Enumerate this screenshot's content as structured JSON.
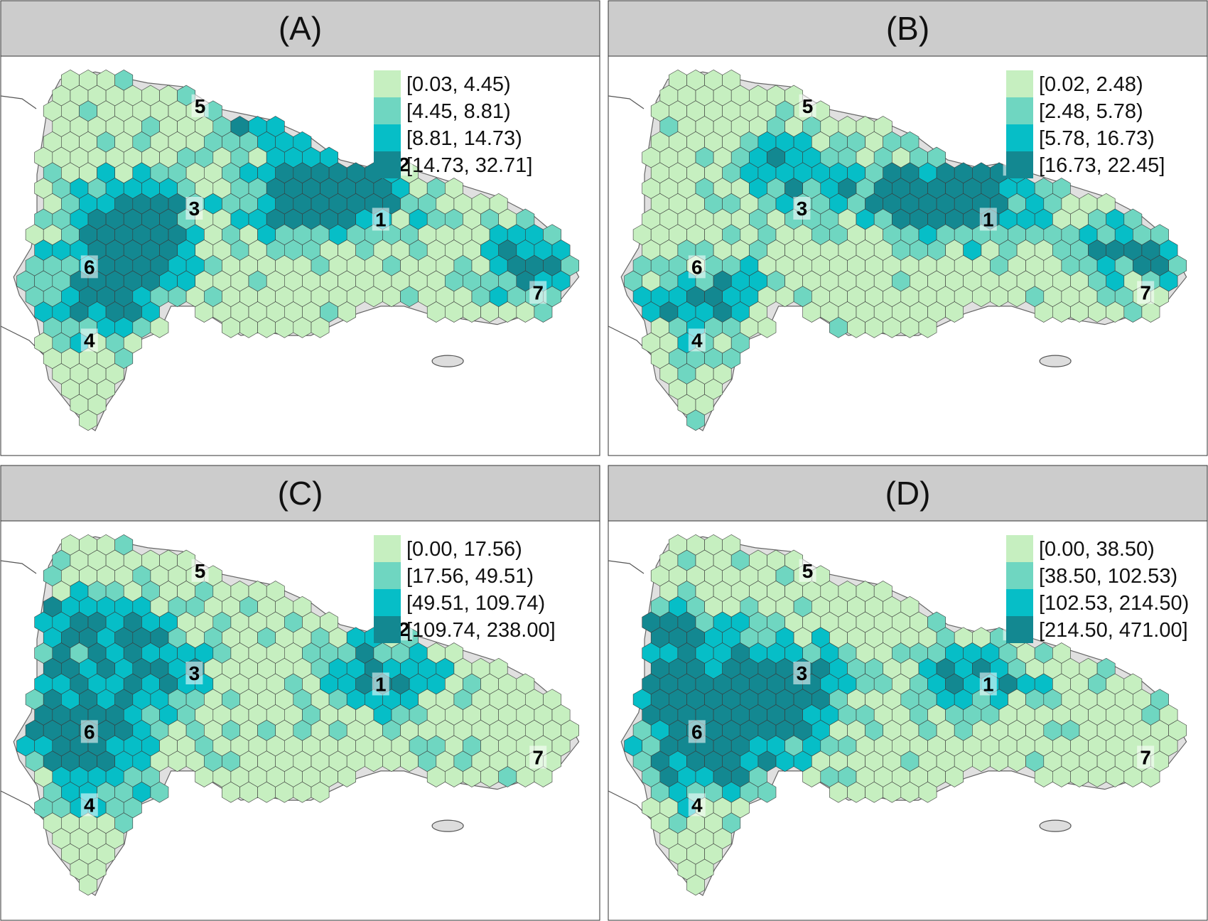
{
  "panels": [
    {
      "title": "(A)",
      "legend": [
        "[0.03, 4.45)",
        "[4.45, 8.81)",
        "[8.81, 14.73)",
        "[14.73, 32.71]"
      ],
      "hotspots": [
        [
          0.6,
          0.35
        ],
        [
          0.5,
          0.36
        ],
        [
          0.15,
          0.65
        ],
        [
          0.2,
          0.4
        ],
        [
          0.22,
          0.5
        ],
        [
          0.9,
          0.55
        ],
        [
          0.45,
          0.12
        ]
      ]
    },
    {
      "title": "(B)",
      "legend": [
        "[0.02, 2.48)",
        "[2.48, 5.78)",
        "[5.78, 16.73)",
        "[16.73, 22.45]"
      ],
      "hotspots": [
        [
          0.52,
          0.38
        ],
        [
          0.62,
          0.35
        ],
        [
          0.15,
          0.65
        ],
        [
          0.88,
          0.5
        ],
        [
          0.3,
          0.3
        ]
      ]
    },
    {
      "title": "(C)",
      "legend": [
        "[0.00, 17.56)",
        "[17.56, 49.51)",
        "[49.51, 109.74)",
        "[109.74, 238.00]"
      ],
      "hotspots": [
        [
          0.25,
          0.38
        ],
        [
          0.12,
          0.25
        ],
        [
          0.15,
          0.65
        ],
        [
          0.08,
          0.5
        ],
        [
          0.63,
          0.4
        ]
      ]
    },
    {
      "title": "(D)",
      "legend": [
        "[0.00, 38.50)",
        "[38.50, 102.53)",
        "[102.53, 214.50)",
        "[214.50, 471.00]"
      ],
      "hotspots": [
        [
          0.3,
          0.4
        ],
        [
          0.26,
          0.52
        ],
        [
          0.15,
          0.65
        ],
        [
          0.1,
          0.3
        ],
        [
          0.63,
          0.4
        ],
        [
          0.1,
          0.48
        ]
      ]
    }
  ],
  "region_labels": [
    "1",
    "2",
    "3",
    "4",
    "5",
    "6",
    "7"
  ],
  "colors": {
    "class1": "#c6efc0",
    "class2": "#6fd6c1",
    "class3": "#06bec7",
    "class4": "#138891",
    "outside": "#e0e0e0"
  }
}
